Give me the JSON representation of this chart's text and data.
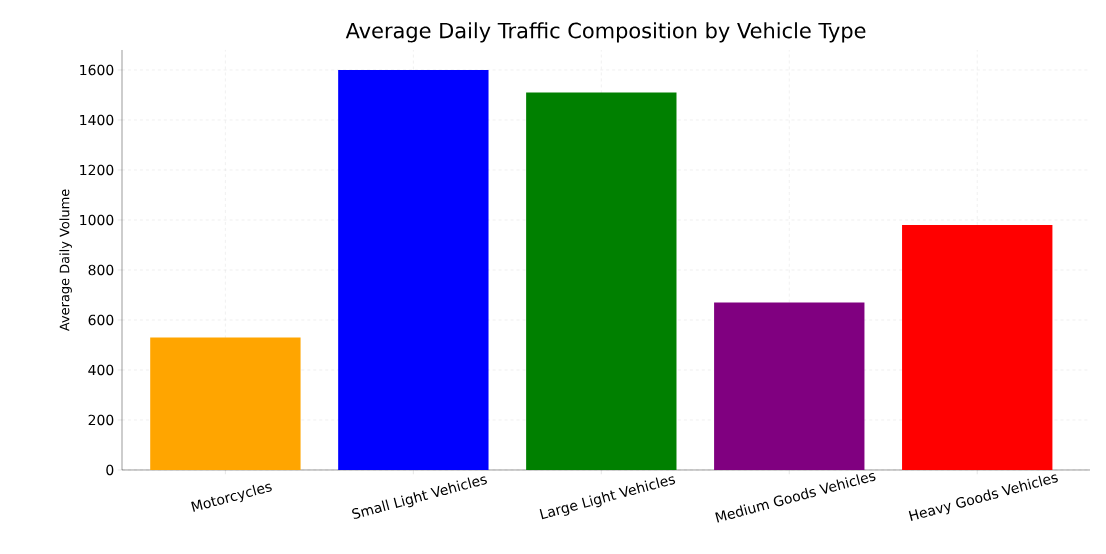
{
  "chart_data": {
    "type": "bar",
    "title": "Average Daily Traffic Composition by Vehicle Type",
    "ylabel": "Average Daily Volume",
    "categories": [
      "Motorcycles",
      "Small Light Vehicles",
      "Large Light Vehicles",
      "Medium Goods Vehicles",
      "Heavy Goods Vehicles"
    ],
    "values": [
      530,
      1600,
      1510,
      670,
      980
    ],
    "colors": [
      "#ffa500",
      "#0000ff",
      "#008000",
      "#800080",
      "#ff0000"
    ],
    "ylim": [
      0,
      1680
    ],
    "yticks": [
      0,
      200,
      400,
      600,
      800,
      1000,
      1200,
      1400,
      1600
    ],
    "grid": true
  }
}
